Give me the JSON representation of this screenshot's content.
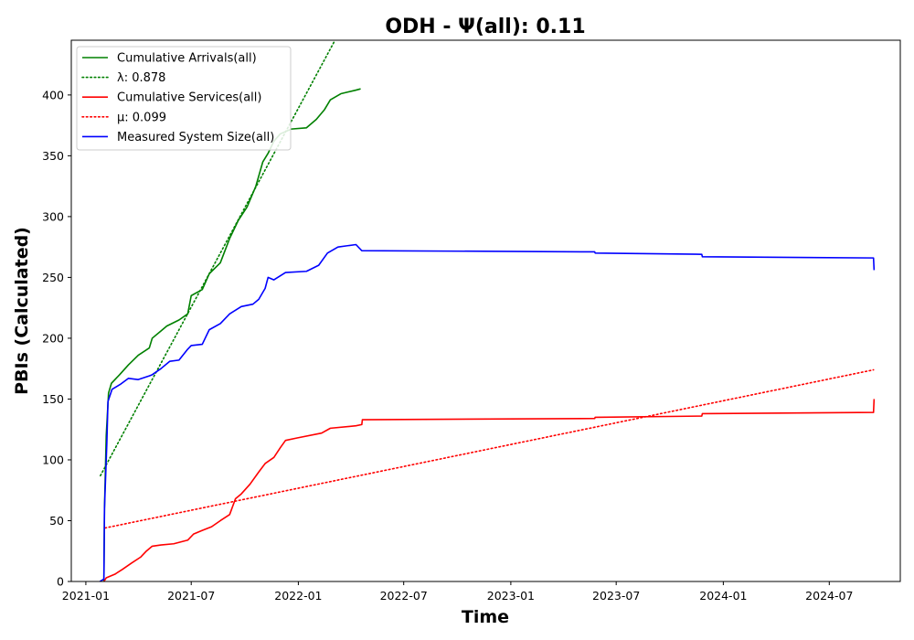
{
  "chart_data": {
    "type": "line",
    "title": "ODH -  Ψ(all): 0.11",
    "xlabel": "Time",
    "ylabel": "PBIs (Calculated)",
    "xlim": [
      "2020-12-07",
      "2024-10-31"
    ],
    "ylim": [
      0,
      445
    ],
    "yticks": [
      0,
      50,
      100,
      150,
      200,
      250,
      300,
      350,
      400
    ],
    "xticks": [
      "2021-01-01",
      "2021-07-01",
      "2022-01-01",
      "2022-07-01",
      "2023-01-01",
      "2023-07-01",
      "2024-01-01",
      "2024-07-01"
    ],
    "xtick_labels": [
      "2021-01",
      "2021-07",
      "2022-01",
      "2022-07",
      "2023-01",
      "2023-07",
      "2024-01",
      "2024-07"
    ],
    "grid": false,
    "legend_position": "upper-left",
    "series": [
      {
        "name": "Cumulative Arrivals(all)",
        "color": "#008000",
        "style": "solid",
        "points": [
          [
            "2021-02-01",
            0
          ],
          [
            "2021-02-02",
            60
          ],
          [
            "2021-02-05",
            120
          ],
          [
            "2021-02-09",
            155
          ],
          [
            "2021-02-14",
            163
          ],
          [
            "2021-02-28",
            170
          ],
          [
            "2021-03-15",
            178
          ],
          [
            "2021-04-01",
            186
          ],
          [
            "2021-04-20",
            192
          ],
          [
            "2021-04-25",
            200
          ],
          [
            "2021-05-10",
            206
          ],
          [
            "2021-05-20",
            210
          ],
          [
            "2021-06-10",
            215
          ],
          [
            "2021-06-25",
            220
          ],
          [
            "2021-07-01",
            235
          ],
          [
            "2021-07-20",
            240
          ],
          [
            "2021-08-01",
            253
          ],
          [
            "2021-08-20",
            262
          ],
          [
            "2021-09-05",
            282
          ],
          [
            "2021-09-20",
            297
          ],
          [
            "2021-10-05",
            308
          ],
          [
            "2021-10-20",
            325
          ],
          [
            "2021-11-01",
            345
          ],
          [
            "2021-11-10",
            352
          ],
          [
            "2021-11-20",
            362
          ],
          [
            "2021-12-01",
            368
          ],
          [
            "2021-12-20",
            372
          ],
          [
            "2022-01-15",
            373
          ],
          [
            "2022-02-01",
            380
          ],
          [
            "2022-02-15",
            388
          ],
          [
            "2022-02-25",
            396
          ],
          [
            "2022-03-15",
            401
          ],
          [
            "2022-04-10",
            404
          ],
          [
            "2022-04-18",
            405
          ]
        ]
      },
      {
        "name": "λ: 0.878",
        "color": "#008000",
        "style": "dotted",
        "points": [
          [
            "2021-01-26",
            87
          ],
          [
            "2022-03-05",
            445
          ]
        ]
      },
      {
        "name": "Cumulative Services(all)",
        "color": "#ff0000",
        "style": "solid",
        "points": [
          [
            "2021-02-01",
            0
          ],
          [
            "2021-02-05",
            3
          ],
          [
            "2021-02-20",
            6
          ],
          [
            "2021-03-05",
            10
          ],
          [
            "2021-03-20",
            15
          ],
          [
            "2021-04-05",
            20
          ],
          [
            "2021-04-15",
            25
          ],
          [
            "2021-04-25",
            29
          ],
          [
            "2021-05-10",
            30
          ],
          [
            "2021-06-01",
            31
          ],
          [
            "2021-06-25",
            34
          ],
          [
            "2021-07-05",
            39
          ],
          [
            "2021-07-20",
            42
          ],
          [
            "2021-08-05",
            45
          ],
          [
            "2021-08-20",
            50
          ],
          [
            "2021-09-05",
            55
          ],
          [
            "2021-09-15",
            68
          ],
          [
            "2021-09-25",
            72
          ],
          [
            "2021-10-10",
            80
          ],
          [
            "2021-10-25",
            90
          ],
          [
            "2021-11-05",
            97
          ],
          [
            "2021-11-20",
            102
          ],
          [
            "2021-12-01",
            110
          ],
          [
            "2021-12-10",
            116
          ],
          [
            "2021-12-30",
            118
          ],
          [
            "2022-02-10",
            122
          ],
          [
            "2022-02-25",
            126
          ],
          [
            "2022-04-10",
            128
          ],
          [
            "2022-04-20",
            129
          ],
          [
            "2022-04-21",
            133
          ],
          [
            "2023-05-25",
            134
          ],
          [
            "2023-05-26",
            135
          ],
          [
            "2023-11-25",
            136
          ],
          [
            "2023-11-26",
            138
          ],
          [
            "2024-09-15",
            139
          ],
          [
            "2024-09-16",
            150
          ]
        ]
      },
      {
        "name": "μ: 0.099",
        "color": "#ff0000",
        "style": "dotted",
        "points": [
          [
            "2021-02-03",
            44
          ],
          [
            "2024-09-15",
            174
          ]
        ]
      },
      {
        "name": "Measured System Size(all)",
        "color": "#0000ff",
        "style": "solid",
        "points": [
          [
            "2021-01-25",
            0
          ],
          [
            "2021-02-01",
            2
          ],
          [
            "2021-02-02",
            60
          ],
          [
            "2021-02-06",
            113
          ],
          [
            "2021-02-08",
            148
          ],
          [
            "2021-02-15",
            158
          ],
          [
            "2021-03-01",
            162
          ],
          [
            "2021-03-15",
            167
          ],
          [
            "2021-04-01",
            166
          ],
          [
            "2021-04-20",
            169
          ],
          [
            "2021-04-25",
            170
          ],
          [
            "2021-05-10",
            175
          ],
          [
            "2021-05-25",
            181
          ],
          [
            "2021-06-10",
            182
          ],
          [
            "2021-06-25",
            191
          ],
          [
            "2021-07-01",
            194
          ],
          [
            "2021-07-20",
            195
          ],
          [
            "2021-08-01",
            207
          ],
          [
            "2021-08-20",
            212
          ],
          [
            "2021-09-05",
            220
          ],
          [
            "2021-09-25",
            226
          ],
          [
            "2021-10-15",
            228
          ],
          [
            "2021-10-25",
            232
          ],
          [
            "2021-11-05",
            241
          ],
          [
            "2021-11-10",
            250
          ],
          [
            "2021-11-20",
            248
          ],
          [
            "2021-12-10",
            254
          ],
          [
            "2022-01-15",
            255
          ],
          [
            "2022-02-05",
            260
          ],
          [
            "2022-02-20",
            270
          ],
          [
            "2022-03-10",
            275
          ],
          [
            "2022-04-10",
            277
          ],
          [
            "2022-04-20",
            272
          ],
          [
            "2023-05-25",
            271
          ],
          [
            "2023-05-26",
            270
          ],
          [
            "2023-11-25",
            269
          ],
          [
            "2023-11-26",
            267
          ],
          [
            "2024-09-15",
            266
          ],
          [
            "2024-09-16",
            256
          ]
        ]
      }
    ]
  }
}
